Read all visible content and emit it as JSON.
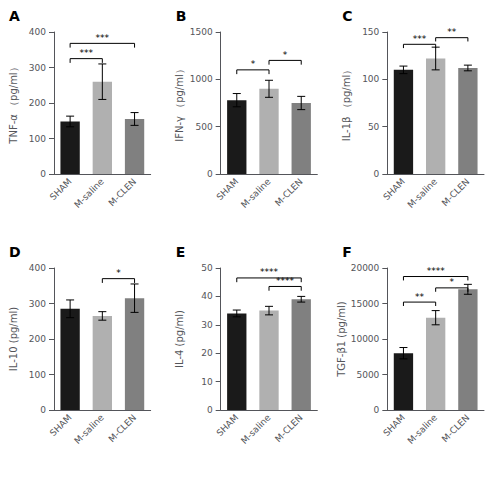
{
  "chart_data": [
    {
      "type": "bar",
      "title": "A",
      "ylabel": "TNF-α （pg/ml）",
      "categories": [
        "SHAM",
        "M-saline",
        "M-CLEN"
      ],
      "values": [
        148,
        260,
        155
      ],
      "errors": [
        15,
        50,
        18
      ],
      "colors": [
        "#1a1a1a",
        "#b0b0b0",
        "#808080"
      ],
      "ylim": [
        0,
        400
      ],
      "yticks": [
        0,
        100,
        200,
        300,
        400
      ],
      "grid": false,
      "annotations": [
        {
          "text": "***",
          "x": [
            "SHAM",
            "M-saline"
          ],
          "y": 325,
          "tip": 12
        },
        {
          "text": "***",
          "x": [
            "SHAM",
            "M-CLEN"
          ],
          "y": 368,
          "tip": 12
        }
      ]
    },
    {
      "type": "bar",
      "title": "B",
      "ylabel": "IFN-γ （pg/ml）",
      "categories": [
        "SHAM",
        "M-saline",
        "M-CLEN"
      ],
      "values": [
        780,
        900,
        750
      ],
      "errors": [
        70,
        90,
        70
      ],
      "colors": [
        "#1a1a1a",
        "#b0b0b0",
        "#808080"
      ],
      "ylim": [
        0,
        1500
      ],
      "yticks": [
        0,
        500,
        1000,
        1500
      ],
      "grid": false,
      "annotations": [
        {
          "text": "*",
          "x": [
            "SHAM",
            "M-saline"
          ],
          "y": 1100,
          "tip": 45
        },
        {
          "text": "*",
          "x": [
            "M-saline",
            "M-CLEN"
          ],
          "y": 1200,
          "tip": 45
        }
      ]
    },
    {
      "type": "bar",
      "title": "C",
      "ylabel": "IL-1β （pg/ml）",
      "categories": [
        "SHAM",
        "M-saline",
        "M-CLEN"
      ],
      "values": [
        110,
        122,
        112
      ],
      "errors": [
        4,
        12,
        3
      ],
      "colors": [
        "#1a1a1a",
        "#b0b0b0",
        "#808080"
      ],
      "ylim": [
        0,
        150
      ],
      "yticks": [
        0,
        50,
        100,
        150
      ],
      "grid": false,
      "annotations": [
        {
          "text": "***",
          "x": [
            "SHAM",
            "M-saline"
          ],
          "y": 137,
          "tip": 4
        },
        {
          "text": "**",
          "x": [
            "M-saline",
            "M-CLEN"
          ],
          "y": 144,
          "tip": 4
        }
      ]
    },
    {
      "type": "bar",
      "title": "D",
      "ylabel": "IL-10 (pg/ml)",
      "categories": [
        "SHAM",
        "M-saline",
        "M-CLEN"
      ],
      "values": [
        285,
        265,
        315
      ],
      "errors": [
        25,
        12,
        40
      ],
      "colors": [
        "#1a1a1a",
        "#b0b0b0",
        "#808080"
      ],
      "ylim": [
        0,
        400
      ],
      "yticks": [
        0,
        100,
        200,
        300,
        400
      ],
      "grid": false,
      "annotations": [
        {
          "text": "*",
          "x": [
            "M-saline",
            "M-CLEN"
          ],
          "y": 370,
          "tip": 12
        }
      ]
    },
    {
      "type": "bar",
      "title": "E",
      "ylabel": "IL-4 (pg/ml)",
      "categories": [
        "SHAM",
        "M-saline",
        "M-CLEN"
      ],
      "values": [
        34,
        35,
        39
      ],
      "errors": [
        1.2,
        1.5,
        1.0
      ],
      "colors": [
        "#1a1a1a",
        "#b0b0b0",
        "#808080"
      ],
      "ylim": [
        0,
        50
      ],
      "yticks": [
        0,
        10,
        20,
        30,
        40,
        50
      ],
      "grid": false,
      "annotations": [
        {
          "text": "****",
          "x": [
            "SHAM",
            "M-CLEN"
          ],
          "y": 46.5,
          "tip": 1.5
        },
        {
          "text": "****",
          "x": [
            "M-saline",
            "M-CLEN"
          ],
          "y": 43.5,
          "tip": 1.5
        }
      ]
    },
    {
      "type": "bar",
      "title": "F",
      "ylabel": "TGF-β1 (pg/ml)",
      "categories": [
        "SHAM",
        "M-saline",
        "M-CLEN"
      ],
      "values": [
        8000,
        13000,
        17000
      ],
      "errors": [
        800,
        1000,
        700
      ],
      "colors": [
        "#1a1a1a",
        "#b0b0b0",
        "#808080"
      ],
      "ylim": [
        0,
        20000
      ],
      "yticks": [
        0,
        5000,
        10000,
        15000,
        20000
      ],
      "grid": false,
      "annotations": [
        {
          "text": "**",
          "x": [
            "SHAM",
            "M-saline"
          ],
          "y": 15200,
          "tip": 550
        },
        {
          "text": "*",
          "x": [
            "M-saline",
            "M-CLEN"
          ],
          "y": 17200,
          "tip": 550
        },
        {
          "text": "****",
          "x": [
            "SHAM",
            "M-CLEN"
          ],
          "y": 18800,
          "tip": 550
        }
      ]
    }
  ]
}
